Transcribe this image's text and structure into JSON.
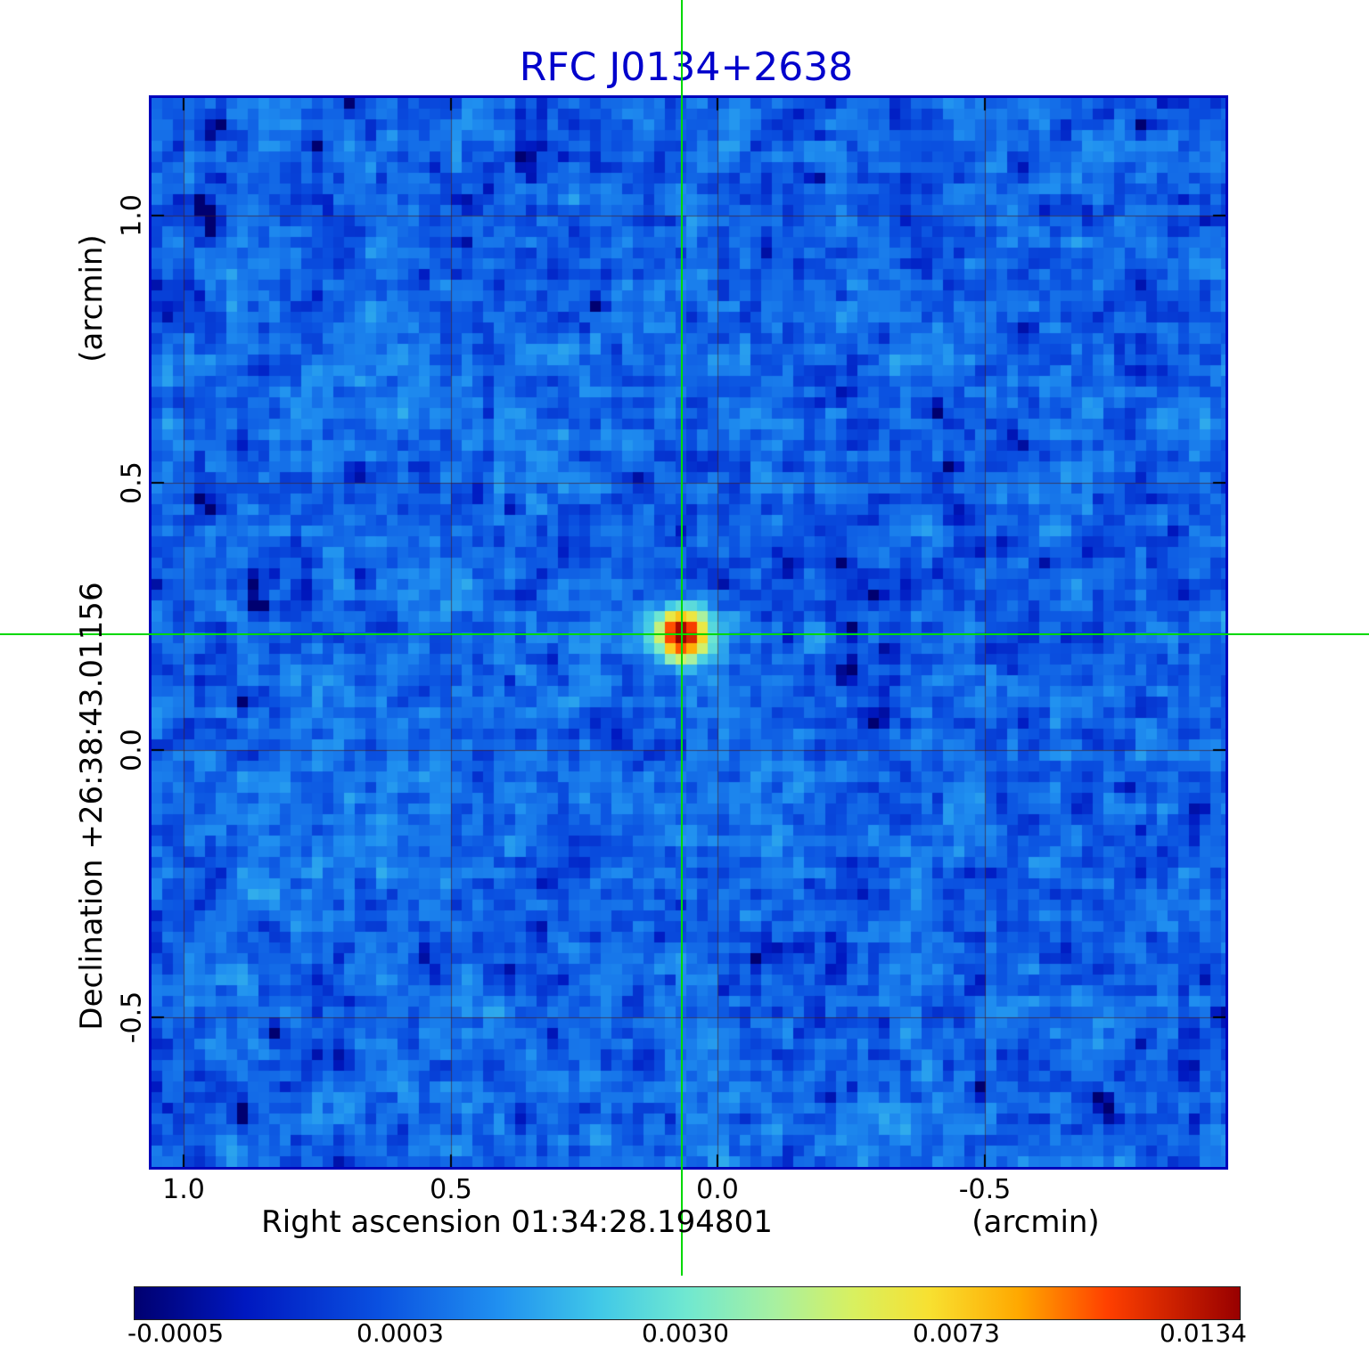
{
  "title": "RFC J0134+2638",
  "colors": {
    "title": "#0000cc",
    "frame": "#0000bb",
    "crosshair": "#00d800",
    "grid": "rgba(70,25,25,0.6)",
    "tick": "#000000"
  },
  "axes": {
    "y_label": "Declination  +26:38:43.01156",
    "y_unit": "(arcmin)",
    "x_label": "Right ascension  01:34:28.194801",
    "x_unit": "(arcmin)",
    "x_ticks": [
      "1.0",
      "0.5",
      "0.0",
      "-0.5"
    ],
    "y_ticks": [
      "1.0",
      "0.5",
      "0.0",
      "-0.5"
    ]
  },
  "colorbar": {
    "tick_labels": [
      "-0.0005",
      "0.0003",
      "0.0030",
      "0.0073",
      "0.0134"
    ],
    "tick_values": [
      -0.0005,
      0.0003,
      0.003,
      0.0073,
      0.0134
    ],
    "vmin": -0.00052,
    "vmax": 0.0136,
    "scale": "sqrt",
    "stops": [
      [
        0.0,
        "#000070"
      ],
      [
        0.1,
        "#0018c0"
      ],
      [
        0.22,
        "#0a50e0"
      ],
      [
        0.33,
        "#2090f0"
      ],
      [
        0.42,
        "#40c8e8"
      ],
      [
        0.5,
        "#70e8d0"
      ],
      [
        0.58,
        "#a8f0a0"
      ],
      [
        0.65,
        "#d8f060"
      ],
      [
        0.72,
        "#f8e030"
      ],
      [
        0.8,
        "#ffa800"
      ],
      [
        0.88,
        "#ff4000"
      ],
      [
        1.0,
        "#980000"
      ]
    ]
  },
  "chart_data": {
    "type": "heatmap",
    "title": "RFC J0134+2638",
    "xlabel": "Right ascension 01:34:28.194801 (arcmin)",
    "ylabel": "Declination +26:38:43.01156 (arcmin)",
    "x_range_arcmin": [
      1.06,
      -0.95
    ],
    "y_range_arcmin": [
      -0.78,
      1.22
    ],
    "x_tick_values": [
      1.0,
      0.5,
      0.0,
      -0.5
    ],
    "y_tick_values": [
      1.0,
      0.5,
      0.0,
      -0.5
    ],
    "grid": true,
    "crosshair_arcmin": {
      "x": 0.067,
      "y": 0.217
    },
    "source": {
      "x_arcmin": 0.067,
      "y_arcmin": 0.217,
      "peak": 0.0134
    },
    "background": {
      "mean": 0.0004,
      "rms": 0.0005
    },
    "value_range": [
      -0.00052,
      0.0136
    ],
    "colorbar_ticks": [
      -0.0005,
      0.0003,
      0.003,
      0.0073,
      0.0134
    ],
    "legend_position": "bottom-colorbar"
  }
}
